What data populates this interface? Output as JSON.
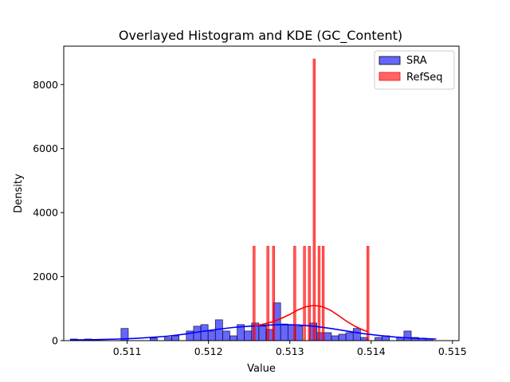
{
  "chart_data": {
    "type": "histogram",
    "title": "Overlayed Histogram and KDE (GC_Content)",
    "xlabel": "Value",
    "ylabel": "Density",
    "xlim": [
      0.51022,
      0.51508
    ],
    "ylim": [
      0,
      9200
    ],
    "xticks": [
      0.511,
      0.512,
      0.513,
      0.514,
      0.515
    ],
    "xtick_labels": [
      "0.511",
      "0.512",
      "0.513",
      "0.514",
      "0.515"
    ],
    "yticks": [
      0,
      2000,
      4000,
      6000,
      8000
    ],
    "ytick_labels": [
      "0",
      "2000",
      "4000",
      "6000",
      "8000"
    ],
    "grid": false,
    "legend_position": "top-right",
    "series": [
      {
        "name": "SRA",
        "kind": "histogram",
        "color": "#0000ff",
        "bin_width": 8.92e-05,
        "bin_start": 0.5103,
        "values": [
          50,
          0,
          50,
          0,
          0,
          0,
          0,
          380,
          0,
          0,
          0,
          80,
          0,
          100,
          150,
          0,
          300,
          450,
          500,
          300,
          650,
          300,
          150,
          500,
          300,
          550,
          450,
          350,
          1180,
          520,
          480,
          450,
          0,
          550,
          250,
          250,
          150,
          200,
          250,
          380,
          100,
          0,
          100,
          150,
          0,
          100,
          300,
          100,
          80,
          50,
          0
        ]
      },
      {
        "name": "RefSeq",
        "kind": "histogram",
        "color": "#ff0000",
        "bars": [
          {
            "x": 0.51256,
            "value": 2950
          },
          {
            "x": 0.51273,
            "value": 2950
          },
          {
            "x": 0.5128,
            "value": 2950
          },
          {
            "x": 0.51306,
            "value": 2950
          },
          {
            "x": 0.51318,
            "value": 2950
          },
          {
            "x": 0.51324,
            "value": 2950
          },
          {
            "x": 0.5133,
            "value": 8800
          },
          {
            "x": 0.51336,
            "value": 2950
          },
          {
            "x": 0.51341,
            "value": 2950
          },
          {
            "x": 0.51396,
            "value": 2950
          }
        ]
      },
      {
        "name": "SRA KDE",
        "kind": "kde",
        "color": "#0000ff",
        "x": [
          0.5103,
          0.5106,
          0.5109,
          0.5111,
          0.5113,
          0.5115,
          0.5117,
          0.5119,
          0.5121,
          0.5123,
          0.5125,
          0.5127,
          0.5129,
          0.5131,
          0.5133,
          0.5135,
          0.5137,
          0.5139,
          0.5141,
          0.5143,
          0.5145,
          0.5148
        ],
        "y": [
          20,
          30,
          50,
          70,
          100,
          140,
          200,
          280,
          350,
          410,
          450,
          480,
          500,
          490,
          450,
          380,
          300,
          220,
          160,
          110,
          80,
          50
        ]
      },
      {
        "name": "RefSeq KDE",
        "kind": "kde",
        "color": "#ff0000",
        "x": [
          0.51256,
          0.5127,
          0.5128,
          0.5129,
          0.513,
          0.5131,
          0.5132,
          0.5133,
          0.5134,
          0.5135,
          0.5136,
          0.5137,
          0.5138,
          0.5139,
          0.51396
        ],
        "y": [
          450,
          530,
          600,
          700,
          820,
          960,
          1060,
          1100,
          1060,
          950,
          780,
          600,
          450,
          330,
          280
        ]
      }
    ]
  }
}
